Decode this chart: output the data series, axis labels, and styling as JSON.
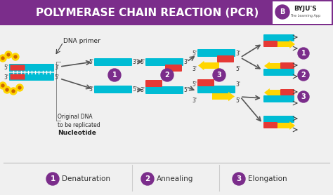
{
  "title": "POLYMERASE CHAIN REACTION (PCR)",
  "title_color": "#ffffff",
  "title_bg": "#7b2d8b",
  "bg_color": "#f0f0f0",
  "main_bg": "#f5f5f5",
  "legend_items": [
    {
      "num": "1",
      "label": "Denaturation"
    },
    {
      "num": "2",
      "label": "Annealing"
    },
    {
      "num": "3",
      "label": "Elongation"
    }
  ],
  "legend_color": "#7b2d8b",
  "legend_text_color": "#333333",
  "cyan_color": "#00bcd4",
  "yellow_color": "#ffd600",
  "red_color": "#e53935",
  "arrow_color": "#555555",
  "labels": {
    "dna_primer": "DNA primer",
    "original_dna": "Original DNA\nto be replicated",
    "nucleotide": "Nucleotide"
  },
  "byju_text": "BYJU'S",
  "byju_sub": "The Learning App"
}
